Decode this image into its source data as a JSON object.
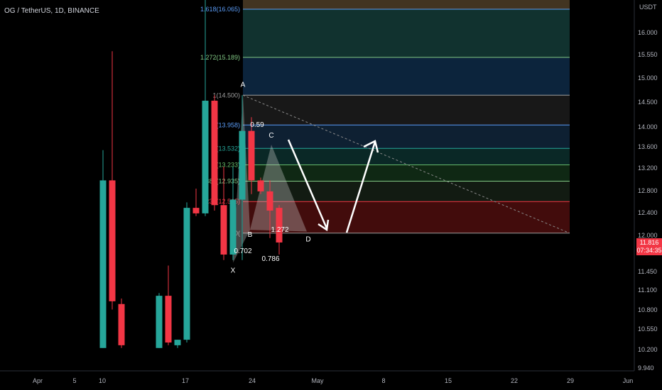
{
  "header": {
    "title": "OG / TetherUS, 1D, BINANCE"
  },
  "price_badge": {
    "price": "11.816",
    "countdown": "07:34:35"
  },
  "colors": {
    "up": "#26a69a",
    "down": "#f23645",
    "background": "#000000"
  },
  "chart_data": {
    "type": "candlestick",
    "y_unit": "USDT",
    "ylim": [
      9.85,
      16.8
    ],
    "y_ticks": [
      "16.000",
      "15.550",
      "15.000",
      "14.500",
      "14.000",
      "13.600",
      "13.200",
      "12.800",
      "12.400",
      "12.000",
      "11.450",
      "11.100",
      "10.800",
      "10.550",
      "10.200",
      "9.940"
    ],
    "x_ticks": [
      "Apr",
      "5",
      "10",
      "17",
      "24",
      "May",
      "8",
      "15",
      "22",
      "29",
      "Jun"
    ],
    "candles": [
      {
        "o": 9.9,
        "h": 13.5,
        "l": 9.9,
        "c": 12.95,
        "dir": "up"
      },
      {
        "o": 12.95,
        "h": 15.3,
        "l": 10.6,
        "c": 10.75,
        "dir": "down"
      },
      {
        "o": 10.7,
        "h": 10.8,
        "l": 9.9,
        "c": 9.95,
        "dir": "down"
      },
      {
        "o": 9.9,
        "h": 10.9,
        "l": 9.9,
        "c": 10.85,
        "dir": "up"
      },
      {
        "o": 10.85,
        "h": 11.4,
        "l": 9.95,
        "c": 10.0,
        "dir": "down"
      },
      {
        "o": 9.95,
        "h": 10.05,
        "l": 9.9,
        "c": 10.05,
        "dir": "up"
      },
      {
        "o": 10.05,
        "h": 12.55,
        "l": 10.0,
        "c": 12.45,
        "dir": "up"
      },
      {
        "o": 12.45,
        "h": 12.8,
        "l": 12.3,
        "c": 12.35,
        "dir": "down"
      },
      {
        "o": 12.35,
        "h": 16.6,
        "l": 12.3,
        "c": 14.4,
        "dir": "up"
      },
      {
        "o": 14.4,
        "h": 14.5,
        "l": 12.4,
        "c": 12.5,
        "dir": "down"
      },
      {
        "o": 12.5,
        "h": 13.2,
        "l": 11.5,
        "c": 11.6,
        "dir": "down"
      },
      {
        "o": 11.6,
        "h": 13.2,
        "l": 11.5,
        "c": 12.6,
        "dir": "up"
      },
      {
        "o": 12.6,
        "h": 14.5,
        "l": 11.5,
        "c": 13.85,
        "dir": "up"
      },
      {
        "o": 13.85,
        "h": 14.1,
        "l": 12.7,
        "c": 12.95,
        "dir": "down"
      },
      {
        "o": 12.95,
        "h": 13.0,
        "l": 12.7,
        "c": 12.75,
        "dir": "down"
      },
      {
        "o": 12.75,
        "h": 12.95,
        "l": 11.9,
        "c": 12.4,
        "dir": "down"
      },
      {
        "o": 12.45,
        "h": 12.5,
        "l": 11.6,
        "c": 11.82,
        "dir": "down"
      }
    ],
    "fib_levels": [
      {
        "label": "1.618(16.065)",
        "value": 16.065,
        "color": "#5b9cf6"
      },
      {
        "label": "1.272(15.189)",
        "value": 15.189,
        "color": "#81c784"
      },
      {
        "label": "1(14.500)",
        "value": 14.5,
        "color": "#9e9e9e"
      },
      {
        "label": "(13.958)",
        "value": 13.958,
        "color": "#5b9cf6"
      },
      {
        "label": "(13.532)",
        "value": 13.532,
        "color": "#26a69a"
      },
      {
        "label": "(13.233)",
        "value": 13.233,
        "color": "#66bb6a"
      },
      {
        "label": "382(12.935)",
        "value": 12.935,
        "color": "#81c784"
      },
      {
        "label": "236(12.565)",
        "value": 12.565,
        "color": "#f23645"
      },
      {
        "label": "0(",
        "value": 11.99,
        "color": "#9e9e9e"
      }
    ],
    "pattern_points": [
      {
        "label": "X",
        "value": 11.45
      },
      {
        "label": "A",
        "value": 14.5
      },
      {
        "label": "B",
        "value": 12.05
      },
      {
        "label": "C",
        "value": 13.6
      },
      {
        "label": "D",
        "value": 12.02
      }
    ],
    "pattern_ratios": [
      "0.59",
      "0.702",
      "0.786",
      "1.272"
    ]
  }
}
